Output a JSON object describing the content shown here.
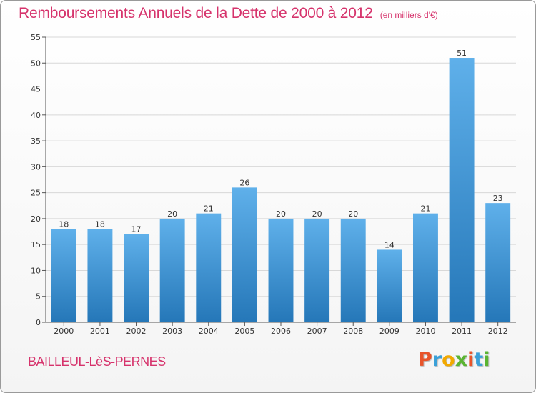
{
  "title": "Remboursements Annuels de la Dette de 2000 à 2012",
  "unit": "(en milliers d'€)",
  "commune": "BAILLEUL-LèS-PERNES",
  "logo": {
    "letters": [
      "P",
      "r",
      "o",
      "x",
      "i",
      "t",
      "i"
    ],
    "colors": [
      "#e8542a",
      "#3aa0d8",
      "#f2a900",
      "#5ab431",
      "#e8542a",
      "#3aa0d8",
      "#5ab431"
    ]
  },
  "colors": {
    "title": "#d6336c",
    "bar_light": "#5fb0ea",
    "bar_dark": "#2577b8"
  },
  "chart_data": {
    "type": "bar",
    "categories": [
      "2000",
      "2001",
      "2002",
      "2003",
      "2004",
      "2005",
      "2006",
      "2007",
      "2008",
      "2009",
      "2010",
      "2011",
      "2012"
    ],
    "values": [
      18,
      18,
      17,
      20,
      21,
      26,
      20,
      20,
      20,
      14,
      21,
      51,
      23
    ],
    "ylim": [
      0,
      55
    ],
    "yticks": [
      0,
      5,
      10,
      15,
      20,
      25,
      30,
      35,
      40,
      45,
      50,
      55
    ],
    "grid": true,
    "data_labels": true
  }
}
